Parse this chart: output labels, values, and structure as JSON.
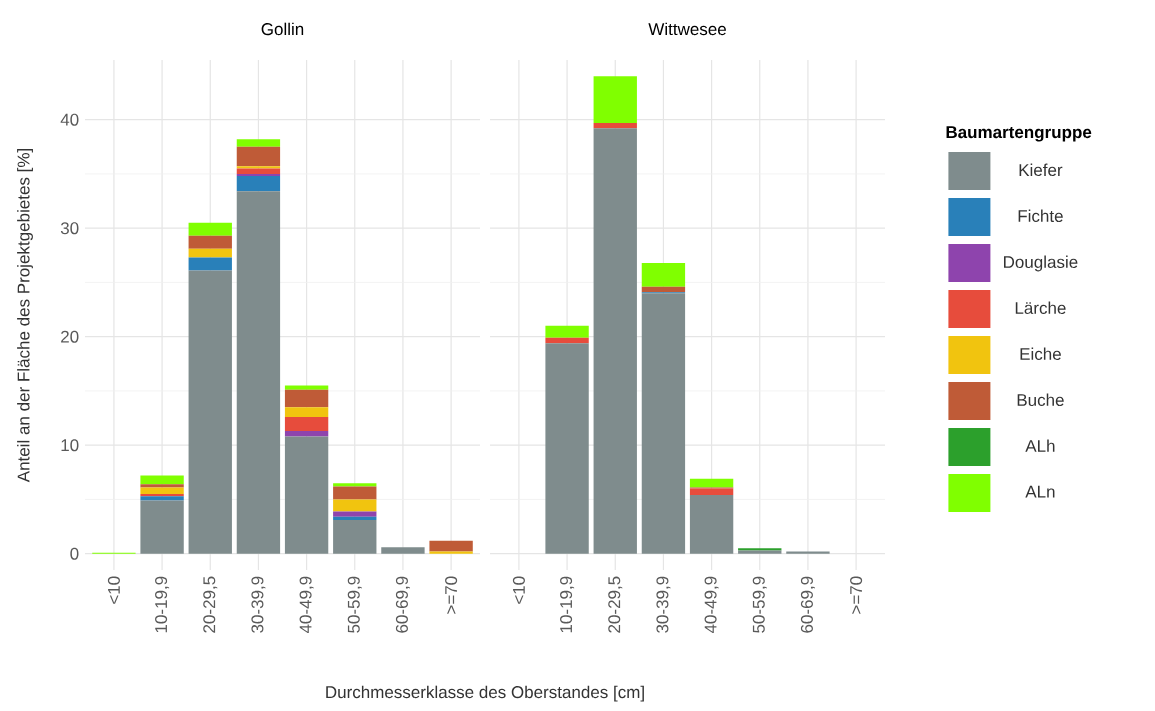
{
  "chart_data": [
    {
      "type": "bar",
      "title": "Gollin",
      "xlabel": "Durchmesserklasse des Oberstandes [cm]",
      "ylabel": "Anteil an der Fläche des Projektgebietes [%]",
      "stacked": true,
      "grid": true,
      "categories": [
        "<10",
        "10-19,9",
        "20-29,5",
        "30-39,9",
        "40-49,9",
        "50-59,9",
        "60-69,9",
        ">=70"
      ],
      "ylim": [
        -1.5,
        45.5
      ],
      "yticks": [
        0,
        10,
        20,
        30,
        40
      ],
      "series": [
        {
          "color": "#7f8c8d",
          "values": [
            0,
            4.9,
            26.1,
            33.4,
            10.8,
            3.1,
            0.6,
            0
          ]
        },
        {
          "color": "#2980b9",
          "values": [
            0,
            0.4,
            1.2,
            1.4,
            0,
            0.3,
            0,
            0
          ]
        },
        {
          "color": "#8e44ad",
          "values": [
            0,
            0,
            0,
            0.2,
            0.5,
            0.5,
            0,
            0
          ]
        },
        {
          "color": "#e74c3c",
          "values": [
            0,
            0.2,
            0,
            0.5,
            1.3,
            0,
            0,
            0
          ]
        },
        {
          "color": "#f1c40f",
          "values": [
            0,
            0.6,
            0.8,
            0.2,
            0.9,
            1.1,
            0,
            0.2
          ]
        },
        {
          "color": "#bf5b37",
          "values": [
            0,
            0.3,
            1.2,
            1.8,
            1.6,
            1.2,
            0,
            1.0
          ]
        },
        {
          "color": "#2ca02c",
          "values": [
            0,
            0,
            0,
            0,
            0,
            0,
            0,
            0
          ]
        },
        {
          "color": "#80ff00",
          "values": [
            0.1,
            0.8,
            1.2,
            0.7,
            0.4,
            0.3,
            0,
            0
          ]
        }
      ]
    },
    {
      "type": "bar",
      "title": "Wittwesee",
      "stacked": true,
      "grid": true,
      "tick_labels": "x",
      "legend": "right",
      "legend_title": "Baumartengruppe",
      "categories": [
        "<10",
        "10-19,9",
        "20-29,5",
        "30-39,9",
        "40-49,9",
        "50-59,9",
        "60-69,9",
        ">=70"
      ],
      "ylim": [
        -1.5,
        45.5
      ],
      "yticks": [
        0,
        10,
        20,
        30,
        40
      ],
      "series": [
        {
          "name": "Kiefer",
          "color": "#7f8c8d",
          "values": [
            0,
            19.4,
            39.2,
            24.0,
            5.4,
            0.3,
            0.2,
            0
          ]
        },
        {
          "name": "Fichte",
          "color": "#2980b9",
          "values": [
            0,
            0,
            0,
            0.1,
            0,
            0,
            0,
            0
          ]
        },
        {
          "name": "Douglasie",
          "color": "#8e44ad",
          "values": [
            0,
            0,
            0,
            0,
            0,
            0,
            0,
            0
          ]
        },
        {
          "name": "Lärche",
          "color": "#e74c3c",
          "values": [
            0,
            0.5,
            0.5,
            0,
            0.6,
            0,
            0,
            0
          ]
        },
        {
          "name": "Eiche",
          "color": "#f1c40f",
          "values": [
            0,
            0,
            0,
            0,
            0,
            0,
            0,
            0
          ]
        },
        {
          "name": "Buche",
          "color": "#bf5b37",
          "values": [
            0,
            0,
            0,
            0.5,
            0.1,
            0,
            0,
            0
          ]
        },
        {
          "name": "ALh",
          "color": "#2ca02c",
          "values": [
            0,
            0,
            0,
            0,
            0,
            0.2,
            0,
            0
          ]
        },
        {
          "name": "ALn",
          "color": "#80ff00",
          "values": [
            0,
            1.1,
            4.3,
            2.2,
            0.8,
            0,
            0,
            0
          ]
        }
      ]
    }
  ]
}
